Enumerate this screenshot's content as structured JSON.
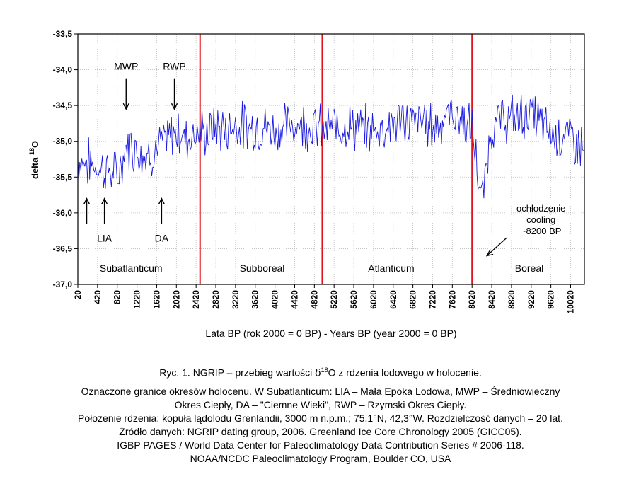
{
  "chart_data": {
    "type": "line",
    "ylabel": "delta",
    "ylabel_sup": "18",
    "ylabel_tail": "O",
    "xlabel": "Lata BP (rok 2000 = 0 BP) - Years BP (year 2000 = 0 BP)",
    "xlim": [
      20,
      10300
    ],
    "ylim": [
      -37.0,
      -33.5
    ],
    "y_ticks": [
      -33.5,
      -34.0,
      -34.5,
      -35.0,
      -35.5,
      -36.0,
      -36.5,
      -37.0
    ],
    "y_tick_labels": [
      "-33,5",
      "-34,0",
      "-34,5",
      "-35,0",
      "-35,5",
      "-36,0",
      "-36,5",
      "-37,0"
    ],
    "x_ticks": [
      20,
      420,
      820,
      1220,
      1620,
      2020,
      2420,
      2820,
      3220,
      3620,
      4020,
      4420,
      4820,
      5220,
      5620,
      6020,
      6420,
      6820,
      7220,
      7620,
      8020,
      8420,
      8820,
      9220,
      9620,
      10020
    ],
    "x_tick_labels": [
      "20",
      "420",
      "820",
      "1220",
      "1620",
      "2020",
      "2420",
      "2820",
      "3220",
      "3620",
      "4020",
      "4420",
      "4820",
      "5220",
      "5620",
      "6020",
      "6420",
      "6820",
      "7220",
      "7620",
      "8020",
      "8420",
      "8820",
      "9220",
      "9620",
      "10020"
    ],
    "grid": true,
    "series_color": "#1a1adf",
    "boundary_color": "#e0141e",
    "boundaries": [
      2500,
      4980,
      8020
    ],
    "periods": [
      {
        "label": "Subatlanticum",
        "x": 1100
      },
      {
        "label": "Subboreal",
        "x": 3760
      },
      {
        "label": "Atlanticum",
        "x": 6380
      },
      {
        "label": "Boreal",
        "x": 9180
      }
    ],
    "annotations": [
      {
        "label": "MWP",
        "x": 1000,
        "label_y": -33.95,
        "arrow_from": -34.12,
        "arrow_to": -34.55,
        "position": "above"
      },
      {
        "label": "RWP",
        "x": 1980,
        "label_y": -33.95,
        "arrow_from": -34.12,
        "arrow_to": -34.55,
        "position": "above"
      },
      {
        "label": "LIA",
        "x": 560,
        "label_y": -36.35,
        "arrow_from": -36.15,
        "arrow_to": -35.8,
        "position": "below",
        "second_arrow_x": 200
      },
      {
        "label": "DA",
        "x": 1720,
        "label_y": -36.35,
        "arrow_from": -36.15,
        "arrow_to": -35.8,
        "position": "below"
      }
    ],
    "cooling_note": [
      "ochłodzenie",
      "cooling",
      "~8200 BP"
    ],
    "series": [
      {
        "x": [
          20,
          220,
          420,
          620,
          820,
          1020,
          1220,
          1420,
          1620,
          1820,
          2020,
          2220,
          2420,
          2620,
          2820,
          3020,
          3220,
          3420,
          3620,
          3820,
          4020,
          4220,
          4420,
          4620,
          4820,
          5020,
          5220,
          5420,
          5620,
          5820,
          6020,
          6220,
          6420,
          6620,
          6820,
          7020,
          7220,
          7420,
          7620,
          7820,
          8020,
          8100,
          8160,
          8220,
          8300,
          8420,
          8620,
          8820,
          9020,
          9220,
          9420,
          9620,
          9820,
          10020,
          10300
        ],
        "values": [
          -35.25,
          -35.3,
          -35.35,
          -35.4,
          -35.5,
          -35.05,
          -35.1,
          -35.2,
          -35.1,
          -35.0,
          -34.85,
          -34.95,
          -34.85,
          -34.9,
          -34.8,
          -34.85,
          -34.75,
          -34.8,
          -34.8,
          -34.8,
          -34.85,
          -34.8,
          -34.75,
          -34.75,
          -34.8,
          -34.85,
          -34.8,
          -34.75,
          -34.8,
          -34.85,
          -34.85,
          -34.8,
          -34.75,
          -34.7,
          -34.75,
          -34.7,
          -34.8,
          -34.7,
          -34.6,
          -34.7,
          -34.85,
          -35.2,
          -35.6,
          -35.9,
          -35.4,
          -34.8,
          -34.7,
          -34.7,
          -34.65,
          -34.6,
          -34.75,
          -34.9,
          -34.9,
          -34.95,
          -35.1
        ]
      }
    ]
  },
  "caption": {
    "line1_pre": "Ryc. 1. NGRIP – przebieg wartości ",
    "line1_delta": "δ",
    "line1_sup": "18",
    "line1_post": "O z rdzenia lodowego w holocenie.",
    "lines": [
      "Oznaczone granice okresów holocenu. W Subatlanticum: LIA – Mała Epoka Lodowa, MWP – Średniowieczny",
      "Okres Ciepły, DA – \"Ciemne Wieki\", RWP – Rzymski Okres Ciepły.",
      "Położenie rdzenia: kopuła lądolodu Grenlandii, 3000 m n.p.m.; 75,1°N, 42,3°W. Rozdzielczość danych – 20 lat.",
      "Źródło danych: NGRIP dating group, 2006. Greenland Ice Core Chronology 2005 (GICC05).",
      "IGBP PAGES / World Data Center for Paleoclimatology Data Contribution Series # 2006-118.",
      "NOAA/NCDC Paleoclimatology Program, Boulder CO, USA"
    ]
  }
}
